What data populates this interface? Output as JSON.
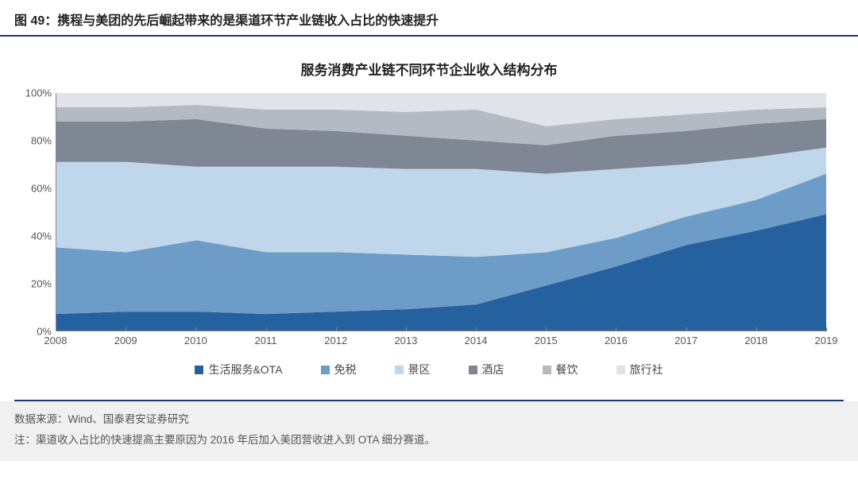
{
  "figure_label": "图 49：携程与美团的先后崛起带来的是渠道环节产业链收入占比的快速提升",
  "chart": {
    "type": "area",
    "title": "服务消费产业链不同环节企业收入结构分布",
    "title_fontsize": 17,
    "background_color": "#ffffff",
    "grid_color": "#dddddd",
    "axis_color": "#888888",
    "label_fontsize": 13,
    "x": {
      "categories": [
        "2008",
        "2009",
        "2010",
        "2011",
        "2012",
        "2013",
        "2014",
        "2015",
        "2016",
        "2017",
        "2018",
        "2019"
      ]
    },
    "y": {
      "min": 0,
      "max": 100,
      "step": 20,
      "ticks": [
        "0%",
        "20%",
        "40%",
        "60%",
        "80%",
        "100%"
      ]
    },
    "series": [
      {
        "name": "生活服务&OTA",
        "color": "#25609f",
        "values": [
          7,
          8,
          8,
          7,
          8,
          9,
          11,
          19,
          27,
          36,
          42,
          49
        ]
      },
      {
        "name": "免税",
        "color": "#6e9cc8",
        "values": [
          28,
          25,
          30,
          26,
          25,
          23,
          20,
          14,
          12,
          12,
          13,
          17
        ]
      },
      {
        "name": "景区",
        "color": "#c0d6ea",
        "values": [
          36,
          38,
          31,
          36,
          36,
          36,
          37,
          33,
          29,
          22,
          18,
          11
        ]
      },
      {
        "name": "酒店",
        "color": "#7e8793",
        "values": [
          17,
          17,
          20,
          16,
          15,
          14,
          12,
          12,
          14,
          14,
          14,
          12
        ]
      },
      {
        "name": "餐饮",
        "color": "#b5bac2",
        "values": [
          6,
          6,
          6,
          8,
          9,
          10,
          13,
          8,
          7,
          7,
          6,
          5
        ]
      },
      {
        "name": "旅行社",
        "color": "#e0e3e8",
        "values": [
          6,
          6,
          5,
          7,
          7,
          8,
          7,
          14,
          11,
          9,
          7,
          6
        ]
      }
    ]
  },
  "footer": {
    "source_label": "数据来源：Wind、国泰君安证券研究",
    "note_label": "注：渠道收入占比的快速提高主要原因为 2016 年后加入美团营收进入到 OTA 细分赛道。"
  },
  "colors": {
    "header_rule": "#1a3a6e",
    "footer_bg": "#f0f0f0"
  }
}
